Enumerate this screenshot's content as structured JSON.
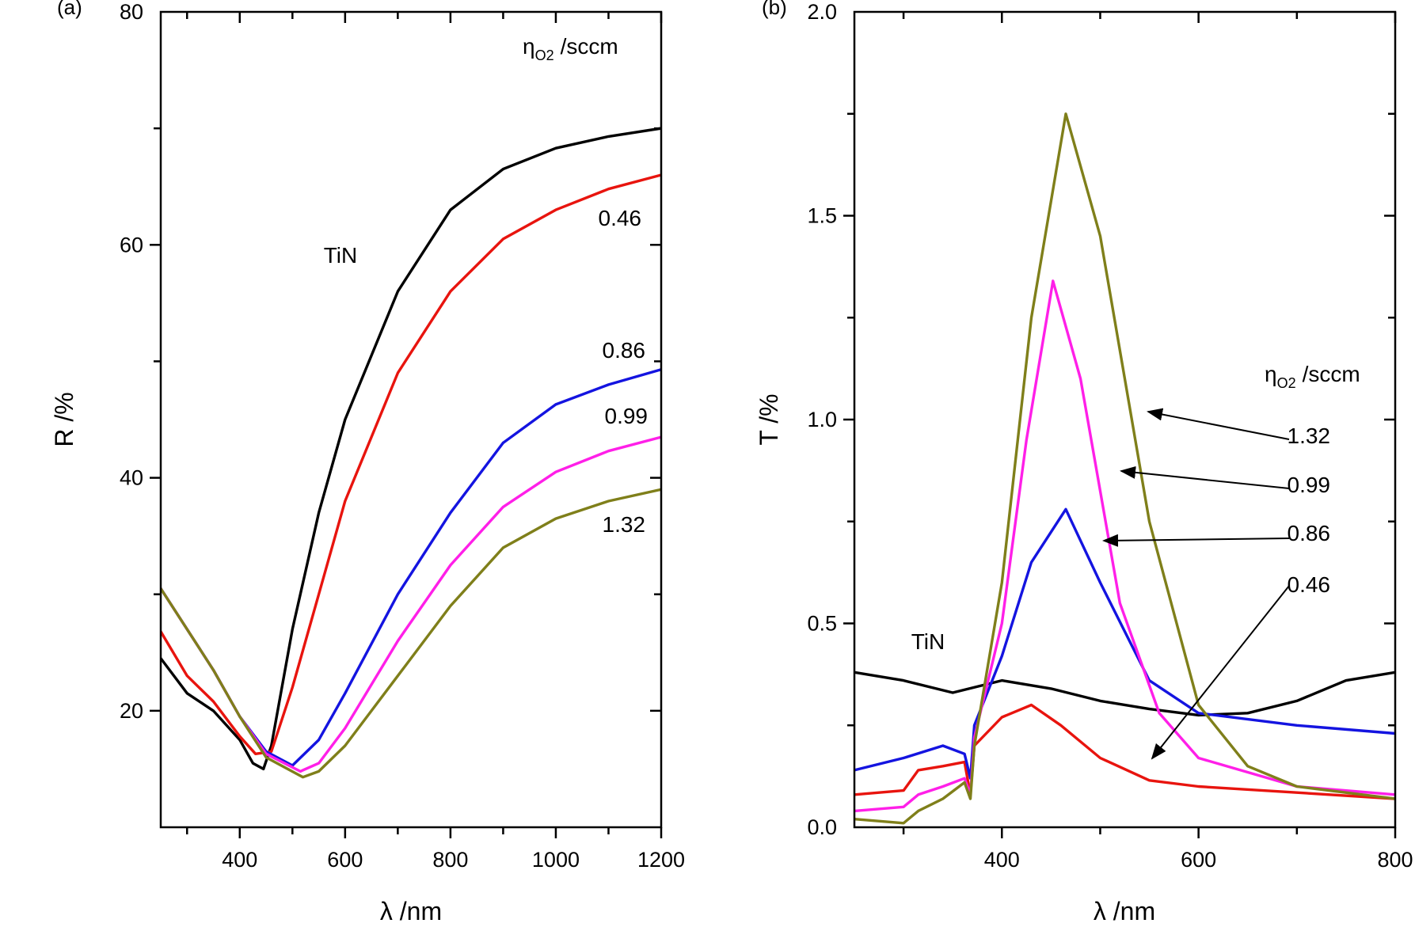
{
  "chart_data": [
    {
      "panel_label": "(a)",
      "type": "line",
      "xlabel": "λ /nm",
      "ylabel": "R /%",
      "xlim": [
        250,
        1200
      ],
      "ylim": [
        10,
        80
      ],
      "xticks": [
        400,
        600,
        800,
        1000,
        1200
      ],
      "yticks": [
        20,
        40,
        60,
        80
      ],
      "grid": false,
      "legend_title": {
        "eta": "η",
        "sub": "O2",
        "unit": "/sccm"
      },
      "annotations": [
        "TiN",
        "0.46",
        "0.86",
        "0.99",
        "1.32"
      ],
      "series": [
        {
          "name": "TiN",
          "color": "#000000",
          "x": [
            250,
            300,
            350,
            400,
            425,
            445,
            460,
            500,
            550,
            600,
            700,
            800,
            900,
            1000,
            1100,
            1200
          ],
          "y": [
            24.5,
            21.5,
            20,
            17.5,
            15.5,
            15,
            17,
            27,
            37,
            45,
            56,
            63,
            66.5,
            68.3,
            69.3,
            70
          ]
        },
        {
          "name": "0.46",
          "color": "#e8140e",
          "x": [
            250,
            300,
            350,
            400,
            430,
            460,
            500,
            550,
            600,
            700,
            800,
            900,
            1000,
            1100,
            1200
          ],
          "y": [
            26.8,
            23,
            20.8,
            17.8,
            16.3,
            16.5,
            22,
            30,
            38,
            49,
            56,
            60.5,
            63,
            64.8,
            66
          ]
        },
        {
          "name": "0.86",
          "color": "#1414e0",
          "x": [
            250,
            300,
            350,
            400,
            450,
            500,
            550,
            600,
            700,
            800,
            900,
            1000,
            1100,
            1200
          ],
          "y": [
            30.5,
            27,
            23.5,
            19.5,
            16.5,
            15.3,
            17.5,
            21.5,
            30,
            37,
            43,
            46.3,
            48,
            49.3
          ]
        },
        {
          "name": "0.99",
          "color": "#ff1fe8",
          "x": [
            250,
            300,
            350,
            400,
            450,
            515,
            550,
            600,
            700,
            800,
            900,
            1000,
            1100,
            1200
          ],
          "y": [
            30.5,
            27,
            23.5,
            19.5,
            16.3,
            14.8,
            15.5,
            18.5,
            26,
            32.5,
            37.5,
            40.5,
            42.3,
            43.5
          ]
        },
        {
          "name": "1.32",
          "color": "#7f7f1a",
          "x": [
            250,
            300,
            350,
            400,
            450,
            520,
            550,
            600,
            700,
            800,
            900,
            1000,
            1100,
            1200
          ],
          "y": [
            30.5,
            27,
            23.5,
            19.5,
            16,
            14.3,
            14.8,
            17,
            23,
            29,
            34,
            36.5,
            38,
            39
          ]
        }
      ]
    },
    {
      "panel_label": "(b)",
      "type": "line",
      "xlabel": "λ /nm",
      "ylabel": "T /%",
      "xlim": [
        250,
        800
      ],
      "ylim": [
        0,
        2
      ],
      "xticks": [
        400,
        600,
        800
      ],
      "yticks": [
        0.0,
        0.5,
        1.0,
        1.5,
        2.0
      ],
      "ytick_labels": [
        "0.0",
        "0.5",
        "1.0",
        "1.5",
        "2.0"
      ],
      "grid": false,
      "legend_title": {
        "eta": "η",
        "sub": "O2",
        "unit": "/sccm"
      },
      "annotations": [
        "TiN",
        "1.32",
        "0.99",
        "0.86",
        "0.46"
      ],
      "series": [
        {
          "name": "TiN",
          "color": "#000000",
          "x": [
            250,
            300,
            350,
            400,
            450,
            500,
            550,
            600,
            650,
            700,
            750,
            800
          ],
          "y": [
            0.38,
            0.36,
            0.33,
            0.36,
            0.34,
            0.31,
            0.29,
            0.275,
            0.28,
            0.31,
            0.36,
            0.38
          ]
        },
        {
          "name": "0.46",
          "color": "#e8140e",
          "x": [
            250,
            300,
            315,
            340,
            362,
            368,
            372,
            400,
            430,
            460,
            500,
            550,
            600,
            700,
            800
          ],
          "y": [
            0.08,
            0.09,
            0.14,
            0.15,
            0.16,
            0.08,
            0.2,
            0.27,
            0.3,
            0.25,
            0.17,
            0.115,
            0.1,
            0.085,
            0.07
          ]
        },
        {
          "name": "0.86",
          "color": "#1414e0",
          "x": [
            250,
            300,
            340,
            362,
            368,
            372,
            400,
            430,
            465,
            500,
            550,
            600,
            700,
            800
          ],
          "y": [
            0.14,
            0.17,
            0.2,
            0.18,
            0.12,
            0.25,
            0.42,
            0.65,
            0.78,
            0.6,
            0.36,
            0.28,
            0.25,
            0.23
          ]
        },
        {
          "name": "0.99",
          "color": "#ff1fe8",
          "x": [
            250,
            300,
            315,
            340,
            362,
            368,
            372,
            400,
            425,
            452,
            480,
            520,
            560,
            600,
            700,
            800
          ],
          "y": [
            0.04,
            0.05,
            0.08,
            0.1,
            0.12,
            0.08,
            0.22,
            0.5,
            0.95,
            1.34,
            1.1,
            0.55,
            0.28,
            0.17,
            0.1,
            0.08
          ]
        },
        {
          "name": "1.32",
          "color": "#7f7f1a",
          "x": [
            250,
            300,
            315,
            340,
            362,
            368,
            372,
            400,
            430,
            465,
            500,
            550,
            600,
            650,
            700,
            800
          ],
          "y": [
            0.02,
            0.01,
            0.04,
            0.07,
            0.11,
            0.07,
            0.2,
            0.6,
            1.25,
            1.75,
            1.45,
            0.75,
            0.3,
            0.15,
            0.1,
            0.07
          ]
        }
      ]
    }
  ]
}
